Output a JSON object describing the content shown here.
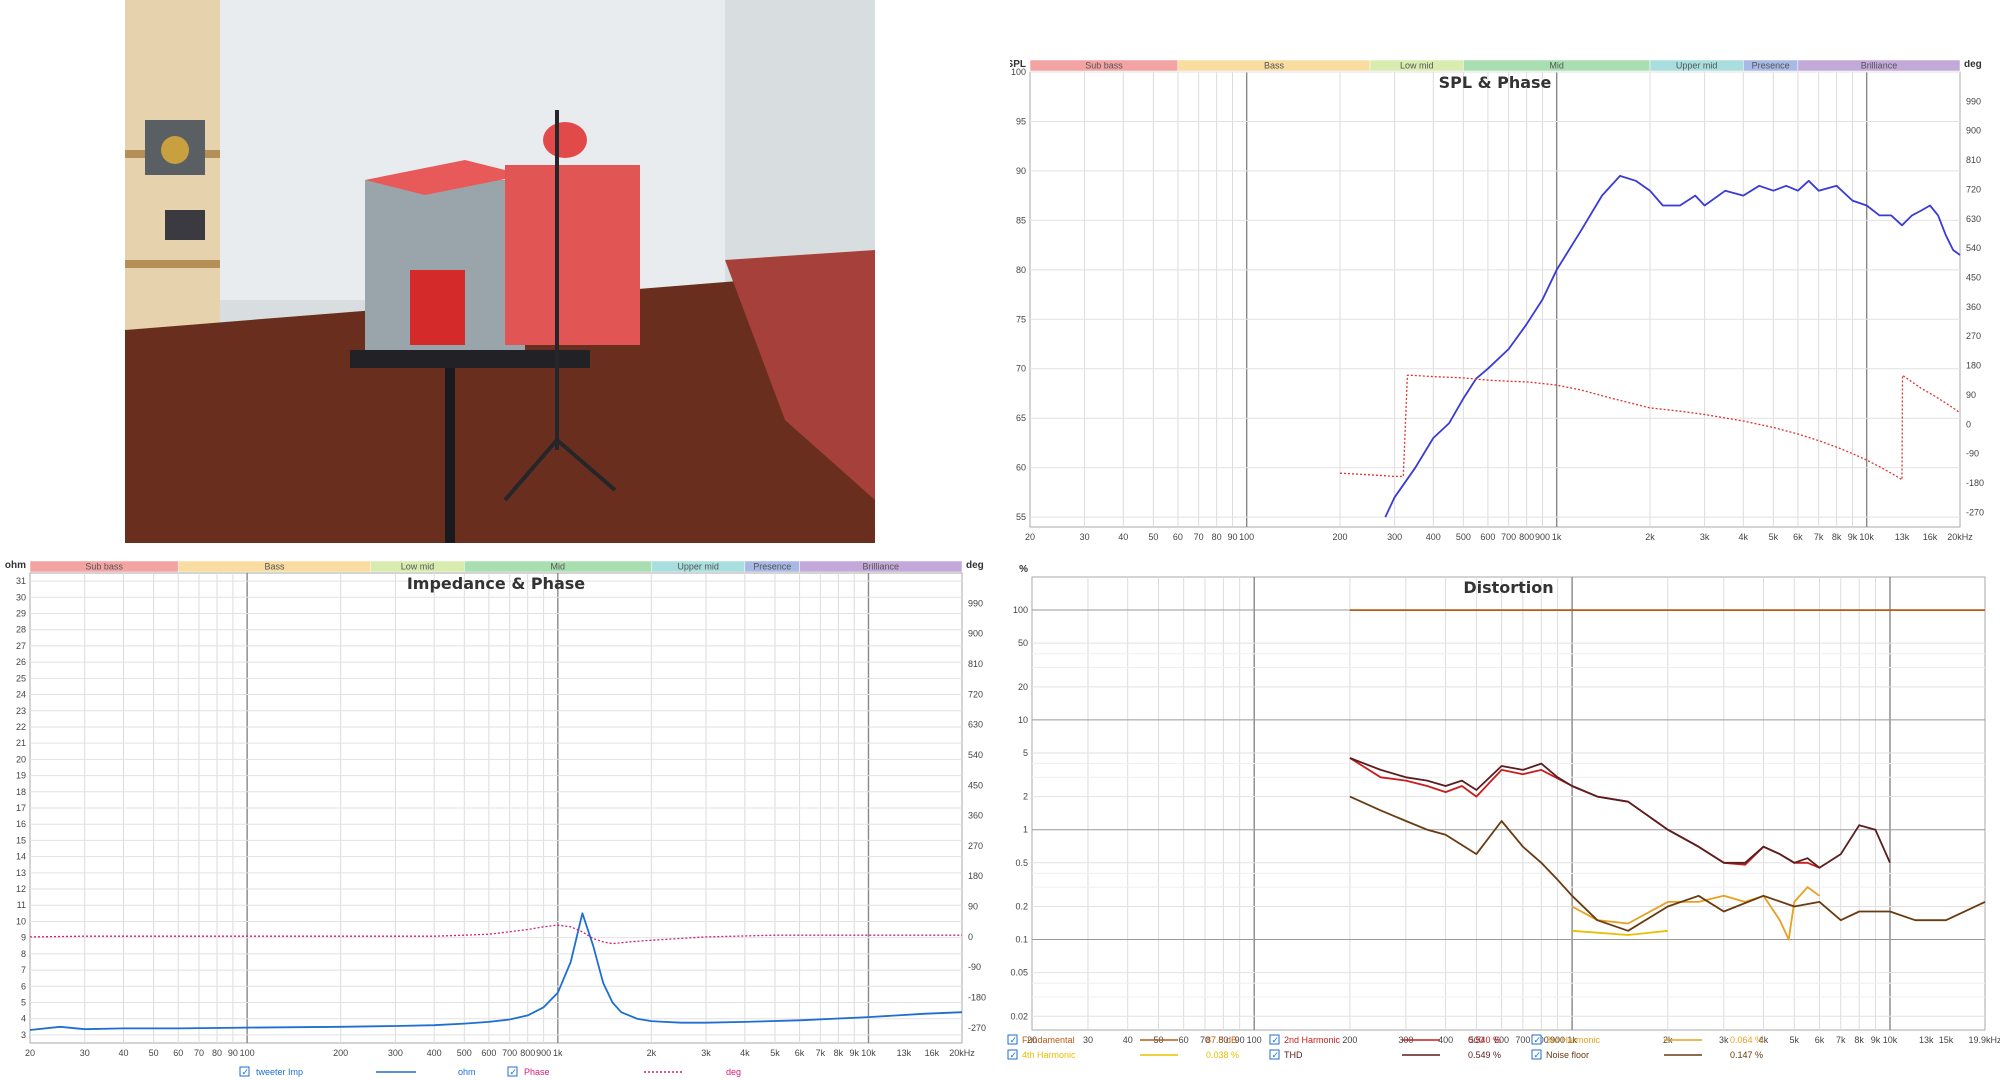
{
  "bands": [
    {
      "label": "Sub bass",
      "color": "#f4a3a3",
      "from": 20,
      "to": 60
    },
    {
      "label": "Bass",
      "color": "#f8dca0",
      "from": 60,
      "to": 250
    },
    {
      "label": "Low mid",
      "color": "#d8ecb0",
      "from": 250,
      "to": 500
    },
    {
      "label": "Mid",
      "color": "#a9dfb0",
      "from": 500,
      "to": 2000
    },
    {
      "label": "Upper mid",
      "color": "#a9dede",
      "from": 2000,
      "to": 4000
    },
    {
      "label": "Presence",
      "color": "#a8b9e6",
      "from": 4000,
      "to": 6000
    },
    {
      "label": "Brilliance",
      "color": "#c2a9d9",
      "from": 6000,
      "to": 20000
    }
  ],
  "freq_ticks": [
    "20",
    "30",
    "40",
    "50",
    "60",
    "70",
    "80",
    "90",
    "100",
    "200",
    "300",
    "400",
    "500",
    "600",
    "700",
    "800",
    "900",
    "1k",
    "2k",
    "3k",
    "4k",
    "5k",
    "6k",
    "7k",
    "8k",
    "9k",
    "10k",
    "13k",
    "16k",
    "20kHz"
  ],
  "freq_tick_values": [
    20,
    30,
    40,
    50,
    60,
    70,
    80,
    90,
    100,
    200,
    300,
    400,
    500,
    600,
    700,
    800,
    900,
    1000,
    2000,
    3000,
    4000,
    5000,
    6000,
    7000,
    8000,
    9000,
    10000,
    13000,
    16000,
    20000
  ],
  "dist_freq_ticks": [
    "20",
    "30",
    "40",
    "50",
    "60",
    "70",
    "80",
    "90",
    "100",
    "200",
    "300",
    "400",
    "500",
    "600",
    "700",
    "800",
    "900",
    "1k",
    "2k",
    "3k",
    "4k",
    "5k",
    "6k",
    "7k",
    "8k",
    "9k",
    "10k",
    "13k",
    "15k",
    "19.9kHz"
  ],
  "dist_freq_tick_values": [
    20,
    30,
    40,
    50,
    60,
    70,
    80,
    90,
    100,
    200,
    300,
    400,
    500,
    600,
    700,
    800,
    900,
    1000,
    2000,
    3000,
    4000,
    5000,
    6000,
    7000,
    8000,
    9000,
    10000,
    13000,
    15000,
    19900
  ],
  "chart_data": [
    {
      "type": "line",
      "title": "SPL & Phase",
      "ylabel": "SPL",
      "y2label": "deg",
      "xlim": [
        20,
        20000
      ],
      "ylim": [
        54,
        100
      ],
      "y2lim": [
        -315,
        1080
      ],
      "yticks": [
        55,
        60,
        65,
        70,
        75,
        80,
        85,
        90,
        95,
        100
      ],
      "y2ticks": [
        -270,
        -180,
        -90,
        0,
        90,
        180,
        270,
        360,
        450,
        540,
        630,
        720,
        810,
        900,
        990
      ],
      "series": [
        {
          "color": "#3a3ad6",
          "dash": false,
          "axis": "left",
          "x": [
            280,
            300,
            350,
            400,
            450,
            500,
            550,
            600,
            700,
            800,
            900,
            1000,
            1200,
            1400,
            1600,
            1800,
            2000,
            2200,
            2500,
            2800,
            3000,
            3500,
            4000,
            4500,
            5000,
            5500,
            6000,
            6500,
            7000,
            8000,
            9000,
            10000,
            11000,
            12000,
            13000,
            14000,
            15000,
            16000,
            17000,
            18000,
            19000,
            20000
          ],
          "y": [
            55,
            57,
            60,
            63,
            64.5,
            67,
            69,
            70,
            72,
            74.5,
            77,
            80,
            84,
            87.5,
            89.5,
            89,
            88,
            86.5,
            86.5,
            87.5,
            86.5,
            88,
            87.5,
            88.5,
            88,
            88.5,
            88,
            89,
            88,
            88.5,
            87,
            86.5,
            85.5,
            85.5,
            84.5,
            85.5,
            86,
            86.5,
            85.5,
            83.5,
            82,
            81.5
          ]
        },
        {
          "color": "#dd3333",
          "dash": true,
          "axis": "right",
          "x": [
            200,
            250,
            300,
            320,
            330,
            340,
            400,
            500,
            600,
            700,
            800,
            900,
            1000,
            1200,
            1500,
            2000,
            2500,
            3000,
            4000,
            5000,
            6000,
            7000,
            8000,
            9000,
            10000,
            11000,
            12000,
            13000,
            13050,
            14000,
            15000,
            16000,
            17000,
            18000,
            19000,
            20000
          ],
          "y": [
            -150,
            -155,
            -160,
            -160,
            150,
            150,
            146,
            142,
            135,
            132,
            130,
            125,
            120,
            105,
            80,
            50,
            40,
            30,
            10,
            -10,
            -30,
            -50,
            -70,
            -90,
            -110,
            -130,
            -150,
            -170,
            150,
            130,
            110,
            95,
            80,
            65,
            50,
            35
          ]
        }
      ]
    },
    {
      "type": "line",
      "title": "Impedance & Phase",
      "ylabel": "ohm",
      "y2label": "deg",
      "xlim": [
        20,
        20000
      ],
      "ylim": [
        2.5,
        31.5
      ],
      "y2lim": [
        -315,
        1080
      ],
      "yticks": [
        3,
        4,
        5,
        6,
        7,
        8,
        9,
        10,
        11,
        12,
        13,
        14,
        15,
        16,
        17,
        18,
        19,
        20,
        21,
        22,
        23,
        24,
        25,
        26,
        27,
        28,
        29,
        30,
        31
      ],
      "y2ticks": [
        -270,
        -180,
        -90,
        0,
        90,
        180,
        270,
        360,
        450,
        540,
        630,
        720,
        810,
        900,
        990
      ],
      "series": [
        {
          "name": "tweeter Imp",
          "color": "#1e6fd0",
          "dash": false,
          "axis": "left",
          "x": [
            20,
            25,
            30,
            40,
            60,
            100,
            200,
            300,
            400,
            500,
            600,
            700,
            800,
            900,
            1000,
            1100,
            1200,
            1300,
            1400,
            1500,
            1600,
            1800,
            2000,
            2200,
            2500,
            3000,
            4000,
            6000,
            10000,
            15000,
            20000
          ],
          "y": [
            3.3,
            3.5,
            3.35,
            3.4,
            3.4,
            3.45,
            3.5,
            3.55,
            3.6,
            3.7,
            3.8,
            3.95,
            4.2,
            4.7,
            5.6,
            7.5,
            10.5,
            8.5,
            6.2,
            5.0,
            4.4,
            4.0,
            3.85,
            3.8,
            3.75,
            3.75,
            3.8,
            3.9,
            4.1,
            4.3,
            4.4
          ]
        },
        {
          "name": "Phase",
          "color": "#d81b78",
          "dash": true,
          "axis": "right",
          "x": [
            20,
            30,
            50,
            100,
            200,
            300,
            400,
            500,
            600,
            700,
            800,
            900,
            1000,
            1100,
            1200,
            1300,
            1400,
            1500,
            1700,
            2000,
            3000,
            5000,
            10000,
            20000
          ],
          "y": [
            0,
            2,
            2,
            2,
            2,
            2,
            2,
            5,
            8,
            15,
            22,
            30,
            35,
            30,
            15,
            -5,
            -15,
            -20,
            -15,
            -10,
            0,
            5,
            5,
            5
          ]
        }
      ]
    },
    {
      "type": "line",
      "title": "Distortion",
      "ylabel": "%",
      "log_y": true,
      "xlim": [
        20,
        19900
      ],
      "ylim": [
        0.015,
        200
      ],
      "yticks": [
        0.02,
        0.05,
        0.1,
        0.2,
        0.5,
        1,
        2,
        5,
        10,
        20,
        50,
        100
      ],
      "ytick_labels": [
        "0.02",
        "0.05",
        "0.1",
        "0.2",
        "0.5",
        "1",
        "2",
        "5",
        "10",
        "20",
        "50",
        "100"
      ],
      "series": [
        {
          "name": "Fundamental",
          "color": "#b85a18",
          "value": "87.5 dB",
          "x": [
            200,
            19900
          ],
          "y": [
            100,
            100
          ]
        },
        {
          "name": "2nd Harmonic",
          "color": "#c81e1e",
          "value": "0.540 %",
          "x": [
            200,
            250,
            300,
            350,
            400,
            450,
            500,
            600,
            700,
            800,
            1000,
            1200,
            1500,
            2000,
            2500,
            3000,
            3500,
            4000,
            4500,
            5000,
            5500,
            6000
          ],
          "y": [
            4.5,
            3,
            2.8,
            2.5,
            2.2,
            2.5,
            2.0,
            3.5,
            3.2,
            3.5,
            2.5,
            2.0,
            1.8,
            1.0,
            0.7,
            0.5,
            0.48,
            0.7,
            0.6,
            0.5,
            0.5,
            0.45
          ]
        },
        {
          "name": "3rd Harmonic",
          "color": "#e8a020",
          "value": "0.064 %",
          "x": [
            1000,
            1200,
            1500,
            2000,
            2500,
            3000,
            3500,
            4000,
            4500,
            4800,
            5000,
            5500,
            6000
          ],
          "y": [
            0.2,
            0.15,
            0.14,
            0.22,
            0.22,
            0.25,
            0.22,
            0.25,
            0.15,
            0.1,
            0.22,
            0.3,
            0.25
          ]
        },
        {
          "name": "4th Harmonic",
          "color": "#e8c000",
          "value": "0.038 %",
          "x": [
            1000,
            1500,
            2000
          ],
          "y": [
            0.12,
            0.11,
            0.12
          ]
        },
        {
          "name": "THD",
          "color": "#5a1e1e",
          "value": "0.549 %",
          "x": [
            200,
            250,
            300,
            350,
            400,
            450,
            500,
            600,
            700,
            800,
            900,
            1000,
            1200,
            1500,
            2000,
            2500,
            3000,
            3500,
            4000,
            4500,
            5000,
            5500,
            6000,
            7000,
            8000,
            9000,
            10000
          ],
          "y": [
            4.5,
            3.5,
            3.0,
            2.8,
            2.5,
            2.8,
            2.3,
            3.8,
            3.5,
            4.0,
            3.0,
            2.5,
            2.0,
            1.8,
            1.0,
            0.7,
            0.5,
            0.5,
            0.7,
            0.6,
            0.5,
            0.55,
            0.45,
            0.6,
            1.1,
            1.0,
            0.5
          ]
        },
        {
          "name": "Noise floor",
          "color": "#6a3a10",
          "value": "0.147 %",
          "x": [
            200,
            250,
            300,
            350,
            400,
            500,
            600,
            700,
            800,
            900,
            1000,
            1200,
            1500,
            2000,
            2500,
            3000,
            4000,
            5000,
            6000,
            7000,
            8000,
            10000,
            12000,
            15000,
            19900
          ],
          "y": [
            2.0,
            1.5,
            1.2,
            1.0,
            0.9,
            0.6,
            1.2,
            0.7,
            0.5,
            0.35,
            0.25,
            0.15,
            0.12,
            0.2,
            0.25,
            0.18,
            0.25,
            0.2,
            0.22,
            0.15,
            0.18,
            0.18,
            0.15,
            0.15,
            0.22
          ]
        }
      ]
    }
  ],
  "imp_legend": [
    {
      "label": "tweeter Imp",
      "color": "#1e6fd0",
      "unit": "ohm"
    },
    {
      "label": "Phase",
      "color": "#d81b78",
      "unit": "deg"
    }
  ]
}
